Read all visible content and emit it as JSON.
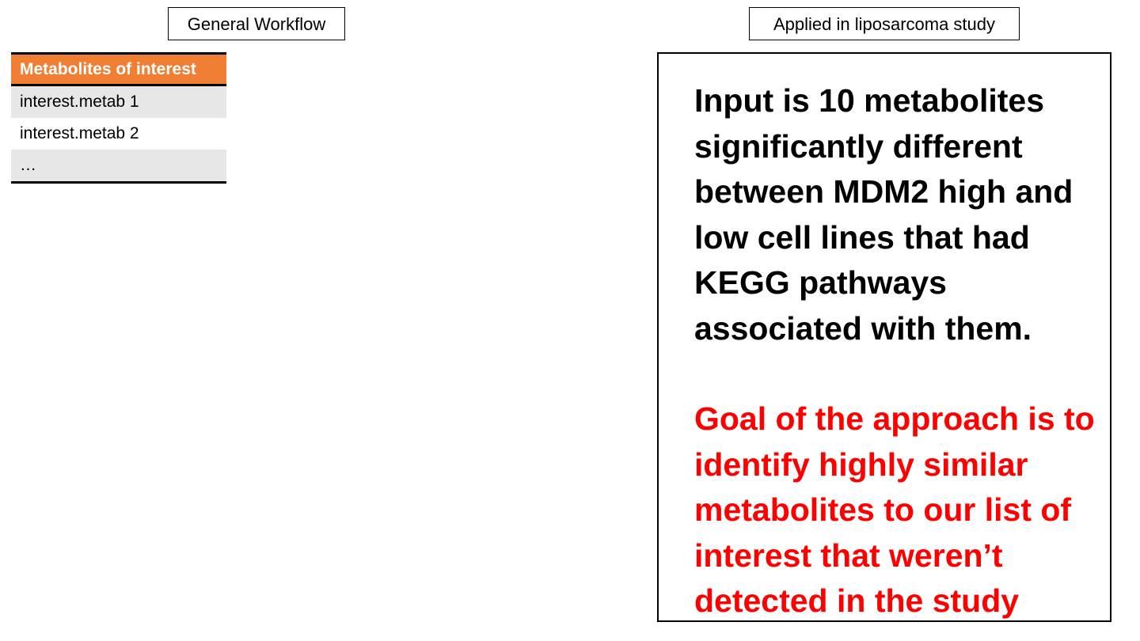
{
  "general_workflow": {
    "label": "General Workflow",
    "table": {
      "header": "Metabolites of interest",
      "rows": [
        "interest.metab 1",
        "interest.metab 2",
        "…"
      ]
    }
  },
  "liposarcoma_study": {
    "label": "Applied in liposarcoma study",
    "input_text": "Input is 10 metabolites significantly different between MDM2 high and low cell lines that had KEGG pathways associated with them.",
    "goal_text": "Goal of the approach is to identify highly similar metabolites to our list of interest that weren’t detected in the study"
  },
  "colors": {
    "header_orange": "#f07f33",
    "row_shade": "#e7e7e7",
    "goal_red": "#ff0000",
    "text_black": "#000000"
  }
}
